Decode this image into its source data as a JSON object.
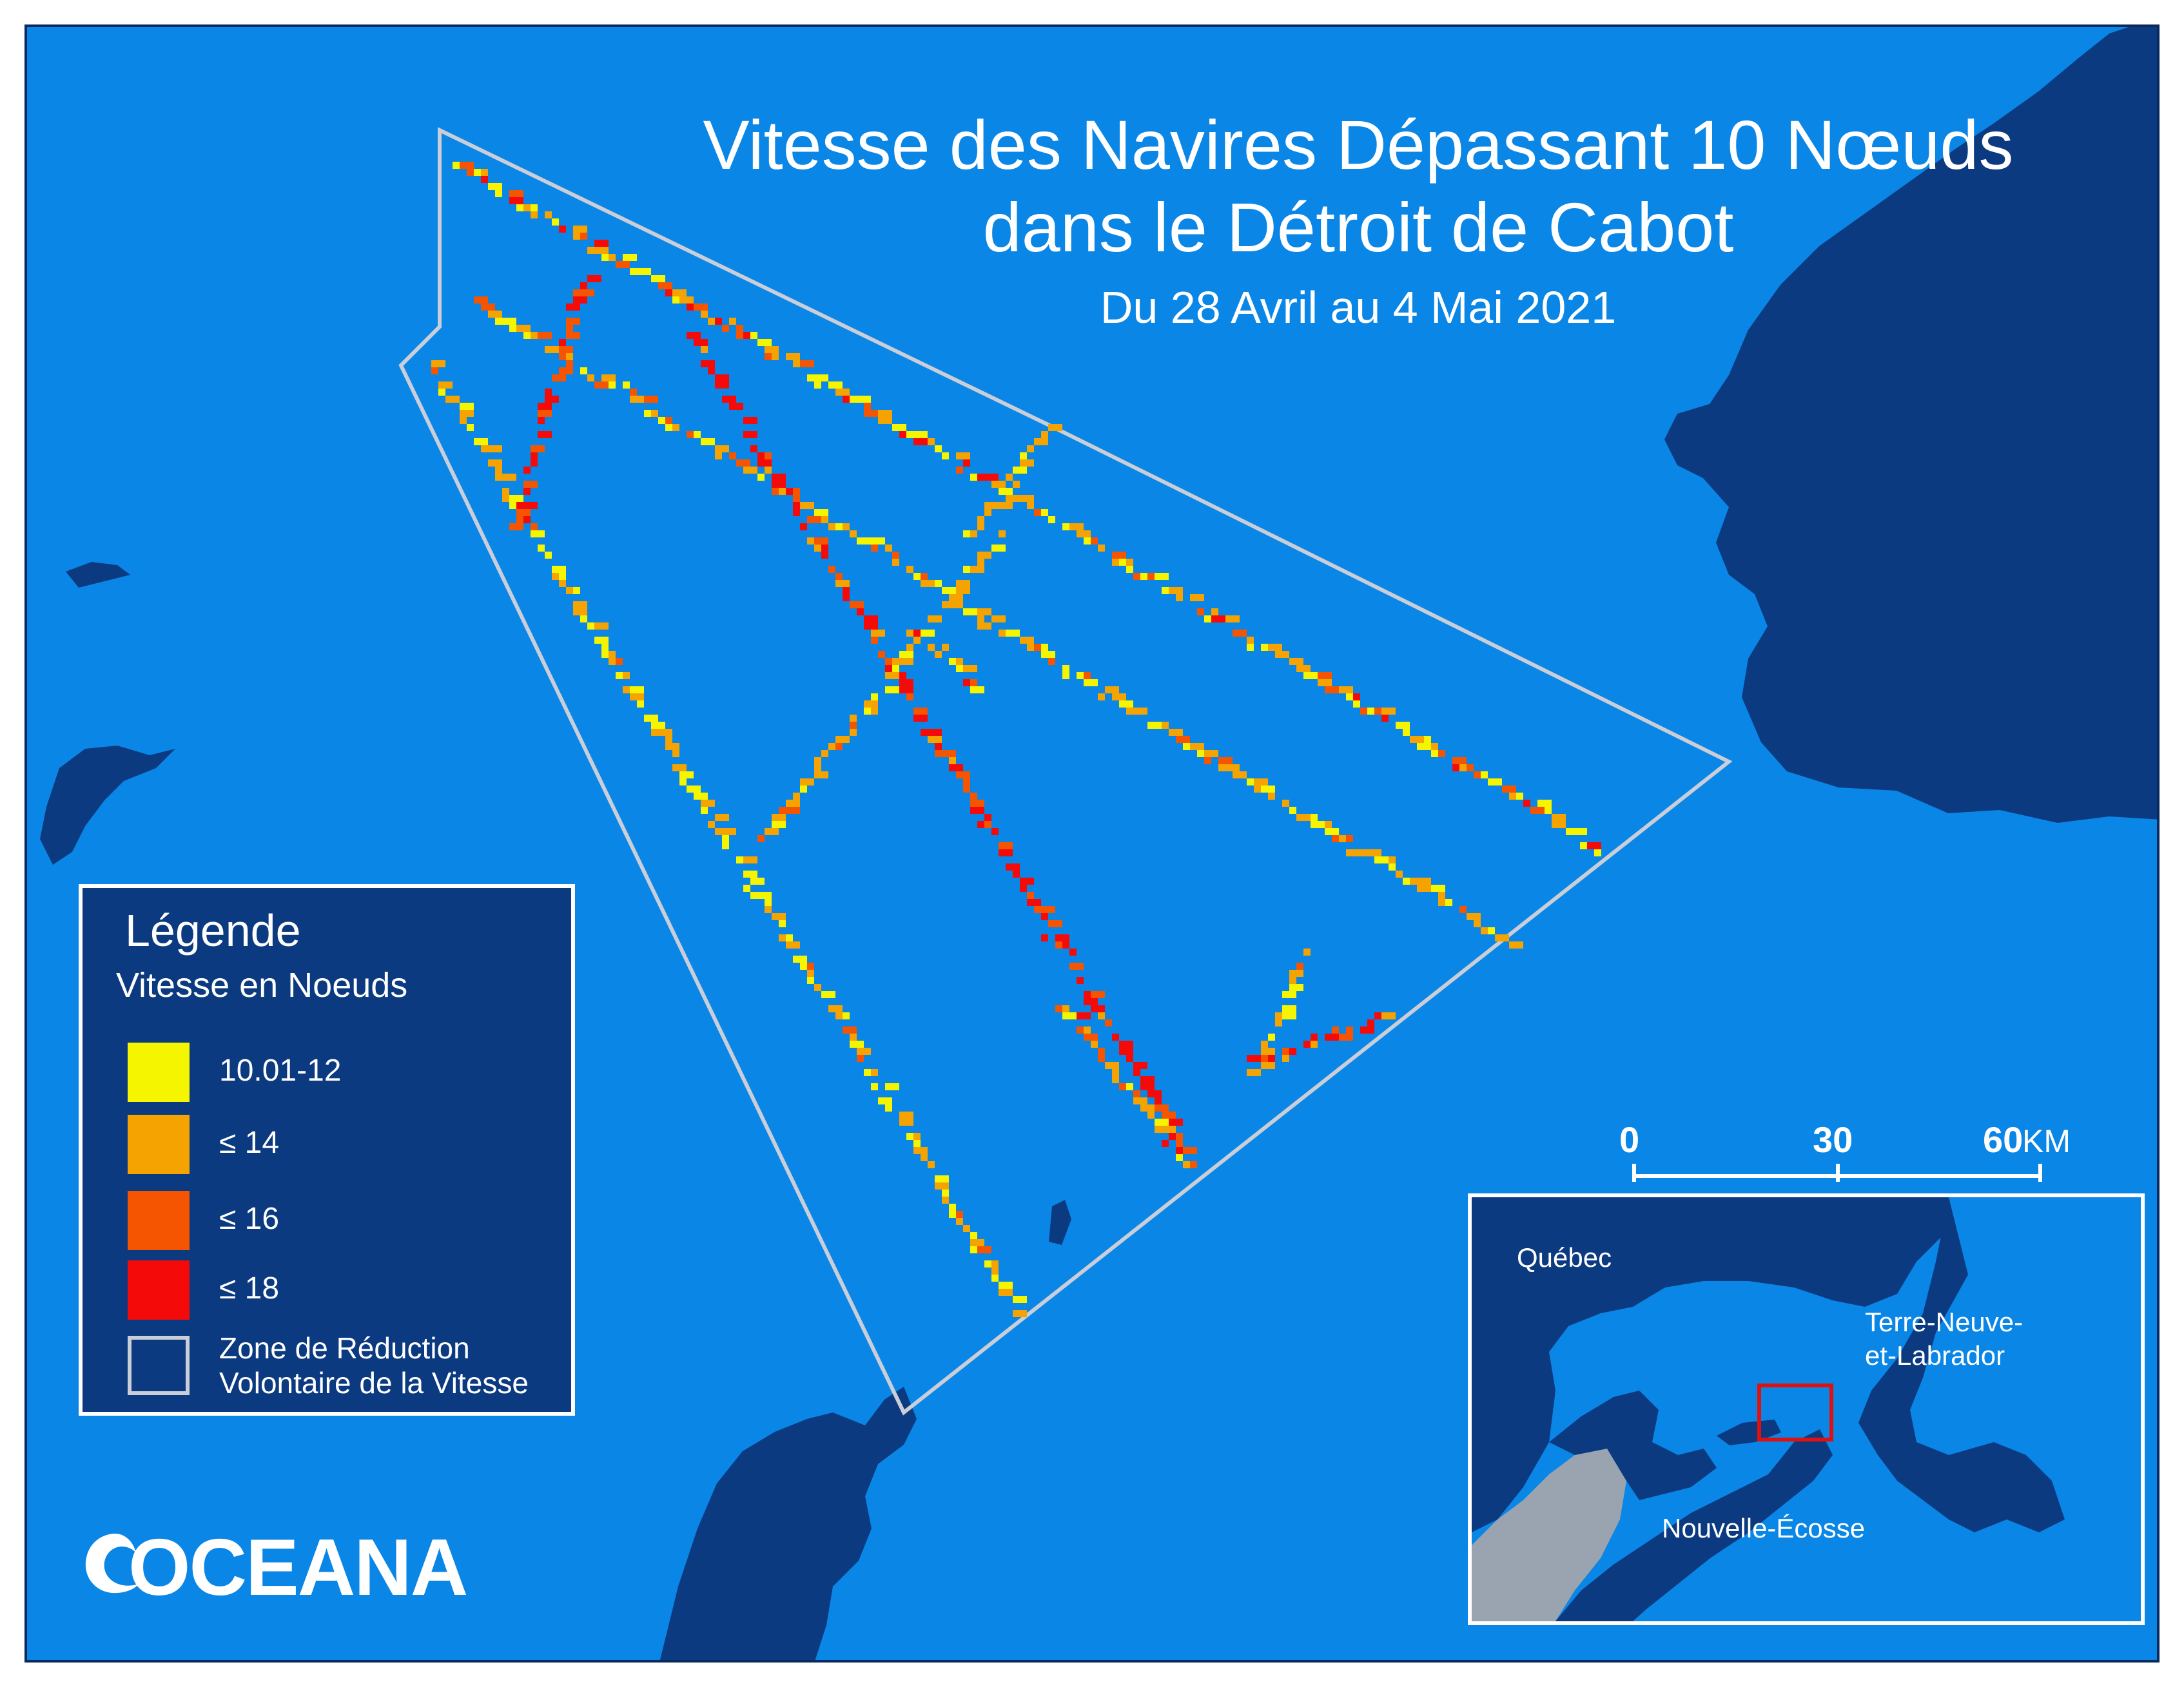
{
  "title": {
    "line1": "Vitesse des Navires Dépassant 10 Nœuds",
    "line2": "dans le Détroit de Cabot",
    "subtitle": "Du 28 Avril au 4 Mai 2021"
  },
  "legend": {
    "title": "Légende",
    "subtitle": "Vitesse en Noeuds",
    "items": [
      {
        "label": "10.01-12",
        "color": "#f5f500"
      },
      {
        "label": "≤ 14",
        "color": "#f5a300"
      },
      {
        "label": "≤ 16",
        "color": "#f55500"
      },
      {
        "label": "≤ 18",
        "color": "#f50a0a"
      }
    ],
    "zone_label": "Zone de Réduction Volontaire de la Vitesse",
    "zone_color": "#c9ced8"
  },
  "scale": {
    "labels": [
      "0",
      "30",
      "60"
    ],
    "unit": "KM"
  },
  "inset": {
    "quebec": "Québec",
    "newfoundland": "Terre-Neuve-\net-Labrador",
    "nova_scotia": "Nouvelle-Écosse",
    "frame_color": "#e01010"
  },
  "logo": {
    "text": "OCEANA"
  },
  "colors": {
    "ocean": "#0a86e6",
    "land": "#0b3a80",
    "zone_border": "#c9ced8",
    "us_land": "#9aa3b0"
  }
}
